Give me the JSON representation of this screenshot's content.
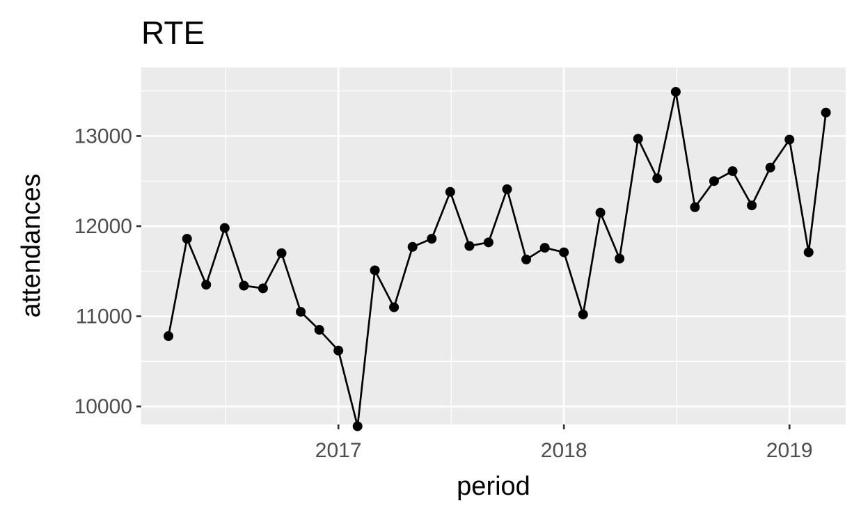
{
  "chart_data": {
    "type": "line",
    "title": "RTE",
    "xlabel": "period",
    "ylabel": "attendances",
    "grid": true,
    "points_marked": true,
    "xlim": [
      "2016-02-17",
      "2019-04-02"
    ],
    "ylim": [
      9800,
      13760
    ],
    "x_ticks": [
      {
        "date": "2017-01-01",
        "label": "2017"
      },
      {
        "date": "2018-01-01",
        "label": "2018"
      },
      {
        "date": "2019-01-01",
        "label": "2019"
      }
    ],
    "y_ticks": [
      10000,
      11000,
      12000,
      13000
    ],
    "series": [
      {
        "color": "#000000",
        "points": [
          {
            "x": "2016-04-01",
            "y": 10780
          },
          {
            "x": "2016-05-01",
            "y": 11860
          },
          {
            "x": "2016-06-01",
            "y": 11350
          },
          {
            "x": "2016-07-01",
            "y": 11980
          },
          {
            "x": "2016-08-01",
            "y": 11340
          },
          {
            "x": "2016-09-01",
            "y": 11310
          },
          {
            "x": "2016-10-01",
            "y": 11700
          },
          {
            "x": "2016-11-01",
            "y": 11050
          },
          {
            "x": "2016-12-01",
            "y": 10850
          },
          {
            "x": "2017-01-01",
            "y": 10620
          },
          {
            "x": "2017-02-01",
            "y": 9780
          },
          {
            "x": "2017-03-01",
            "y": 11510
          },
          {
            "x": "2017-04-01",
            "y": 11100
          },
          {
            "x": "2017-05-01",
            "y": 11770
          },
          {
            "x": "2017-06-01",
            "y": 11860
          },
          {
            "x": "2017-07-01",
            "y": 12380
          },
          {
            "x": "2017-08-01",
            "y": 11780
          },
          {
            "x": "2017-09-01",
            "y": 11820
          },
          {
            "x": "2017-10-01",
            "y": 12410
          },
          {
            "x": "2017-11-01",
            "y": 11630
          },
          {
            "x": "2017-12-01",
            "y": 11760
          },
          {
            "x": "2018-01-01",
            "y": 11710
          },
          {
            "x": "2018-02-01",
            "y": 11020
          },
          {
            "x": "2018-03-01",
            "y": 12150
          },
          {
            "x": "2018-04-01",
            "y": 11640
          },
          {
            "x": "2018-05-01",
            "y": 12970
          },
          {
            "x": "2018-06-01",
            "y": 12530
          },
          {
            "x": "2018-07-01",
            "y": 13490
          },
          {
            "x": "2018-08-01",
            "y": 12210
          },
          {
            "x": "2018-09-01",
            "y": 12500
          },
          {
            "x": "2018-10-01",
            "y": 12610
          },
          {
            "x": "2018-11-01",
            "y": 12230
          },
          {
            "x": "2018-12-01",
            "y": 12650
          },
          {
            "x": "2019-01-01",
            "y": 12960
          },
          {
            "x": "2019-02-01",
            "y": 11710
          },
          {
            "x": "2019-03-01",
            "y": 13260
          }
        ]
      }
    ],
    "colors": {
      "panel": "#ebebeb",
      "grid": "#ffffff",
      "line": "#000000",
      "tick_text": "#4d4d4d",
      "text": "#000000"
    }
  }
}
